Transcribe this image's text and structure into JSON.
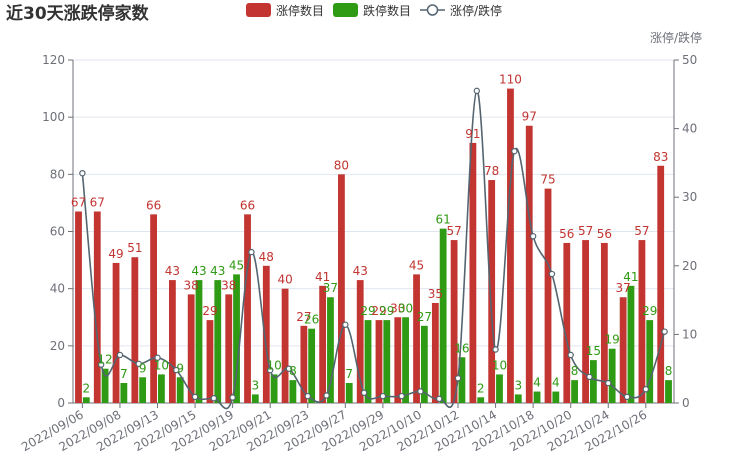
{
  "chart_data": {
    "type": "bar",
    "title": "近30天涨跌停家数",
    "legend": {
      "items": [
        {
          "name": "涨停数目",
          "kind": "bar",
          "color": "#c23531"
        },
        {
          "name": "跌停数目",
          "kind": "bar",
          "color": "#2f9a13"
        },
        {
          "name": "涨停/跌停",
          "kind": "line",
          "color": "#546570"
        }
      ],
      "placement": "top-center"
    },
    "y_left": {
      "min": 0,
      "max": 120,
      "ticks": [
        "0",
        "20",
        "40",
        "60",
        "80",
        "100",
        "120"
      ]
    },
    "y_right": {
      "name": "涨停/跌停",
      "min": 0,
      "max": 50,
      "ticks": [
        "0",
        "10",
        "20",
        "30",
        "40",
        "50"
      ]
    },
    "x_ticks": [
      "2022/09/06",
      "2022/09/08",
      "2022/09/13",
      "2022/09/15",
      "2022/09/19",
      "2022/09/21",
      "2022/09/23",
      "2022/09/27",
      "2022/09/29",
      "2022/10/10",
      "2022/10/12",
      "2022/10/14",
      "2022/10/18",
      "2022/10/20",
      "2022/10/24",
      "2022/10/26"
    ],
    "series": [
      {
        "name": "涨停数目",
        "color": "#c23531",
        "values": [
          67,
          67,
          49,
          51,
          66,
          43,
          38,
          29,
          38,
          66,
          48,
          40,
          27,
          41,
          80,
          43,
          29,
          30,
          45,
          35,
          57,
          91,
          78,
          110,
          97,
          75,
          56,
          57,
          56,
          37,
          57,
          83
        ]
      },
      {
        "name": "跌停数目",
        "color": "#2f9a13",
        "values": [
          2,
          12,
          7,
          9,
          10,
          9,
          43,
          43,
          45,
          3,
          10,
          8,
          26,
          37,
          7,
          29,
          29,
          30,
          27,
          61,
          16,
          2,
          10,
          3,
          4,
          4,
          8,
          15,
          19,
          41,
          29,
          8
        ]
      },
      {
        "name": "涨停/跌停",
        "color": "#546570",
        "axis": "right",
        "values": [
          33.5,
          5.6,
          7.0,
          5.7,
          6.6,
          4.8,
          0.9,
          0.7,
          0.8,
          22.0,
          4.8,
          5.0,
          1.0,
          1.1,
          11.4,
          1.5,
          1.0,
          1.0,
          1.7,
          0.6,
          3.6,
          45.5,
          7.8,
          36.7,
          24.3,
          18.8,
          7.0,
          3.8,
          2.9,
          0.9,
          2.0,
          10.4
        ]
      }
    ]
  }
}
